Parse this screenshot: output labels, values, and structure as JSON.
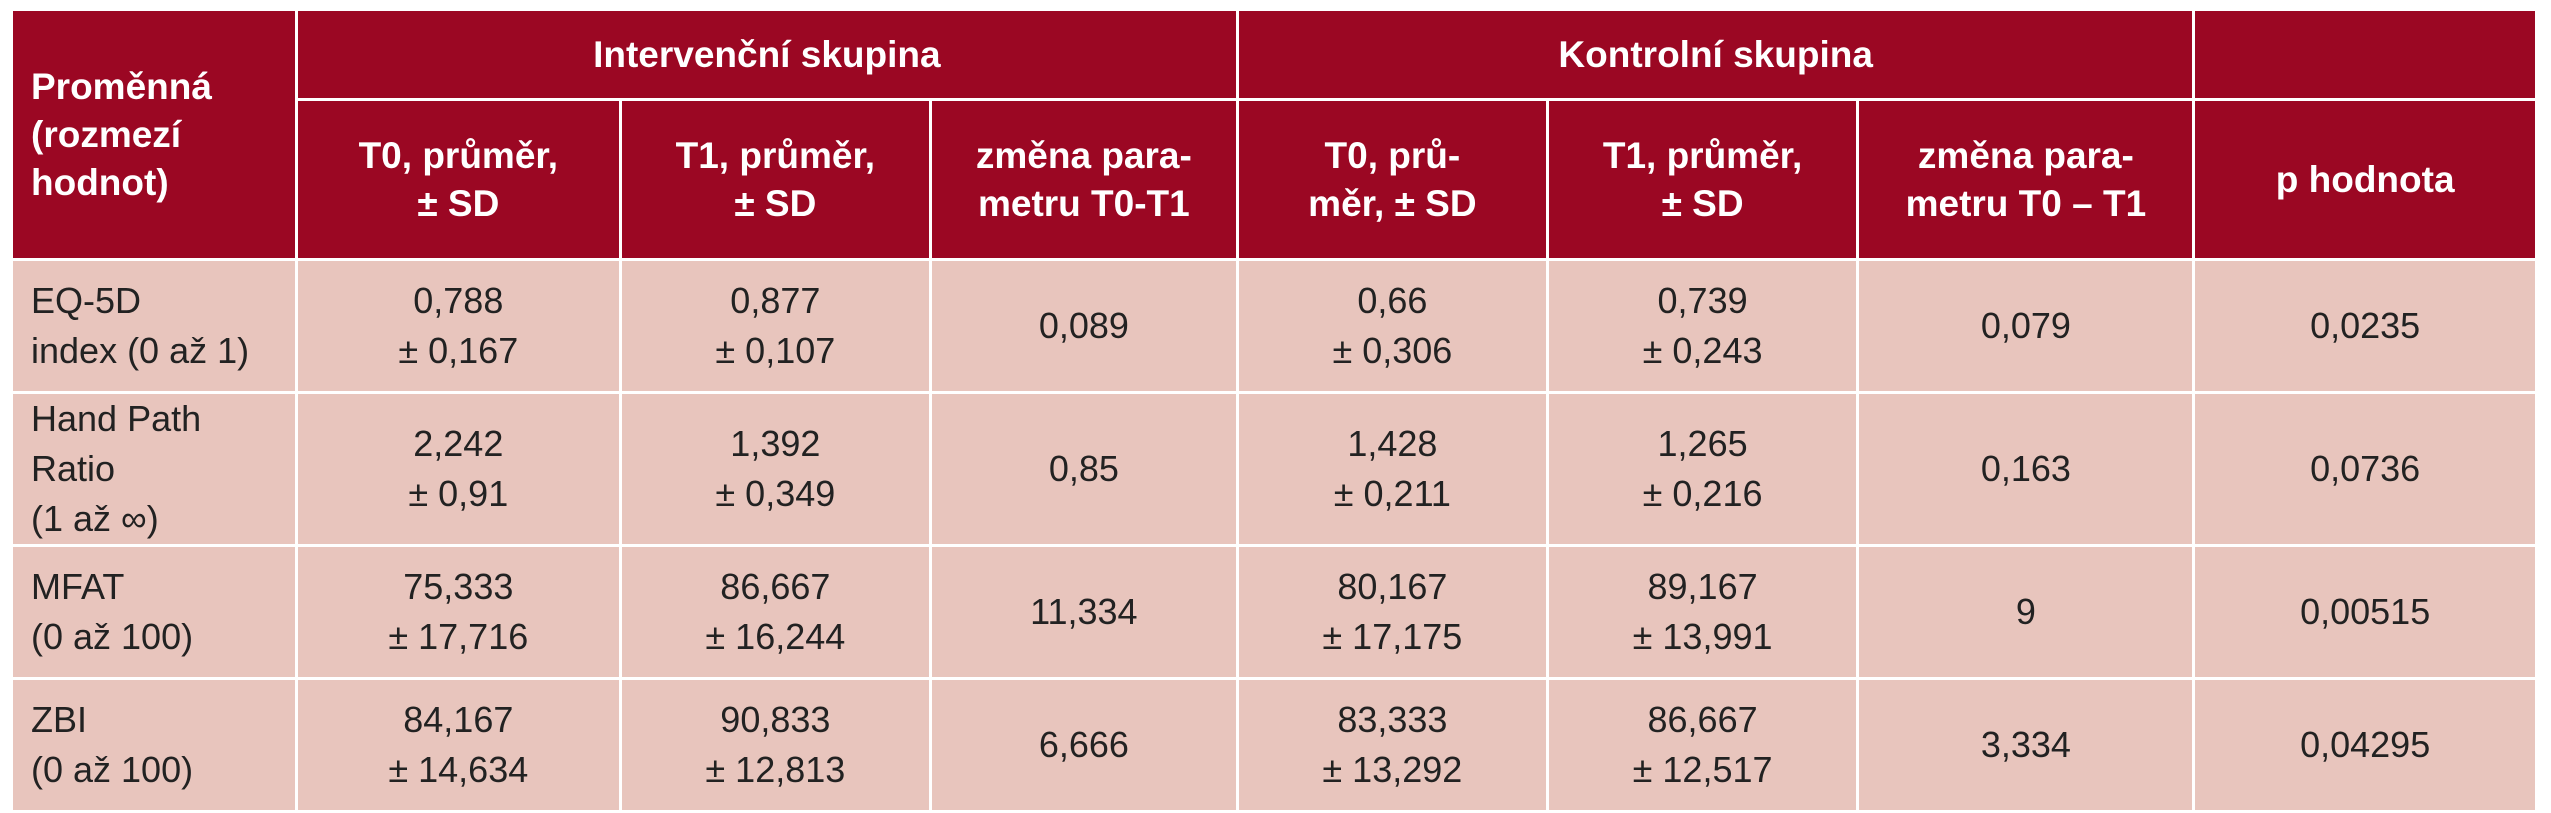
{
  "header": {
    "variable": [
      "Proměnná",
      "(rozmezí hodnot)"
    ],
    "intervention_group": "Intervenční skupina",
    "control_group": "Kontrolní skupina",
    "subheaders": [
      [
        "T0, průměr,",
        "± SD"
      ],
      [
        "T1, průměr,",
        "± SD"
      ],
      [
        "změna para-",
        "metru T0-T1"
      ],
      [
        "T0, prů-",
        "měr, ± SD"
      ],
      [
        "T1, průměr,",
        "± SD"
      ],
      [
        "změna para-",
        "metru T0 – T1"
      ]
    ],
    "p_value": "p hodnota"
  },
  "rows": [
    {
      "label": [
        "EQ-5D",
        "index (0 až 1)"
      ],
      "int_t0": [
        "0,788",
        "± 0,167"
      ],
      "int_t1": [
        "0,877",
        "± 0,107"
      ],
      "int_change": "0,089",
      "ctl_t0": [
        "0,66",
        "± 0,306"
      ],
      "ctl_t1": [
        "0,739",
        "± 0,243"
      ],
      "ctl_change": "0,079",
      "p": "0,0235"
    },
    {
      "label": [
        "Hand Path Ratio",
        "(1 až ∞)"
      ],
      "int_t0": [
        "2,242",
        "± 0,91"
      ],
      "int_t1": [
        "1,392",
        "± 0,349"
      ],
      "int_change": "0,85",
      "ctl_t0": [
        "1,428",
        "± 0,211"
      ],
      "ctl_t1": [
        "1,265",
        "± 0,216"
      ],
      "ctl_change": "0,163",
      "p": "0,0736"
    },
    {
      "label": [
        "MFAT",
        "(0 až 100)"
      ],
      "int_t0": [
        "75,333",
        "± 17,716"
      ],
      "int_t1": [
        "86,667",
        "± 16,244"
      ],
      "int_change": "11,334",
      "ctl_t0": [
        "80,167",
        "± 17,175"
      ],
      "ctl_t1": [
        "89,167",
        "± 13,991"
      ],
      "ctl_change": "9",
      "p": "0,00515"
    },
    {
      "label": [
        "ZBI",
        "(0 až 100)"
      ],
      "int_t0": [
        "84,167",
        "± 14,634"
      ],
      "int_t1": [
        "90,833",
        "± 12,813"
      ],
      "int_change": "6,666",
      "ctl_t0": [
        "83,333",
        "± 13,292"
      ],
      "ctl_t1": [
        "86,667",
        "± 12,517"
      ],
      "ctl_change": "3,334",
      "p": "0,04295"
    }
  ]
}
